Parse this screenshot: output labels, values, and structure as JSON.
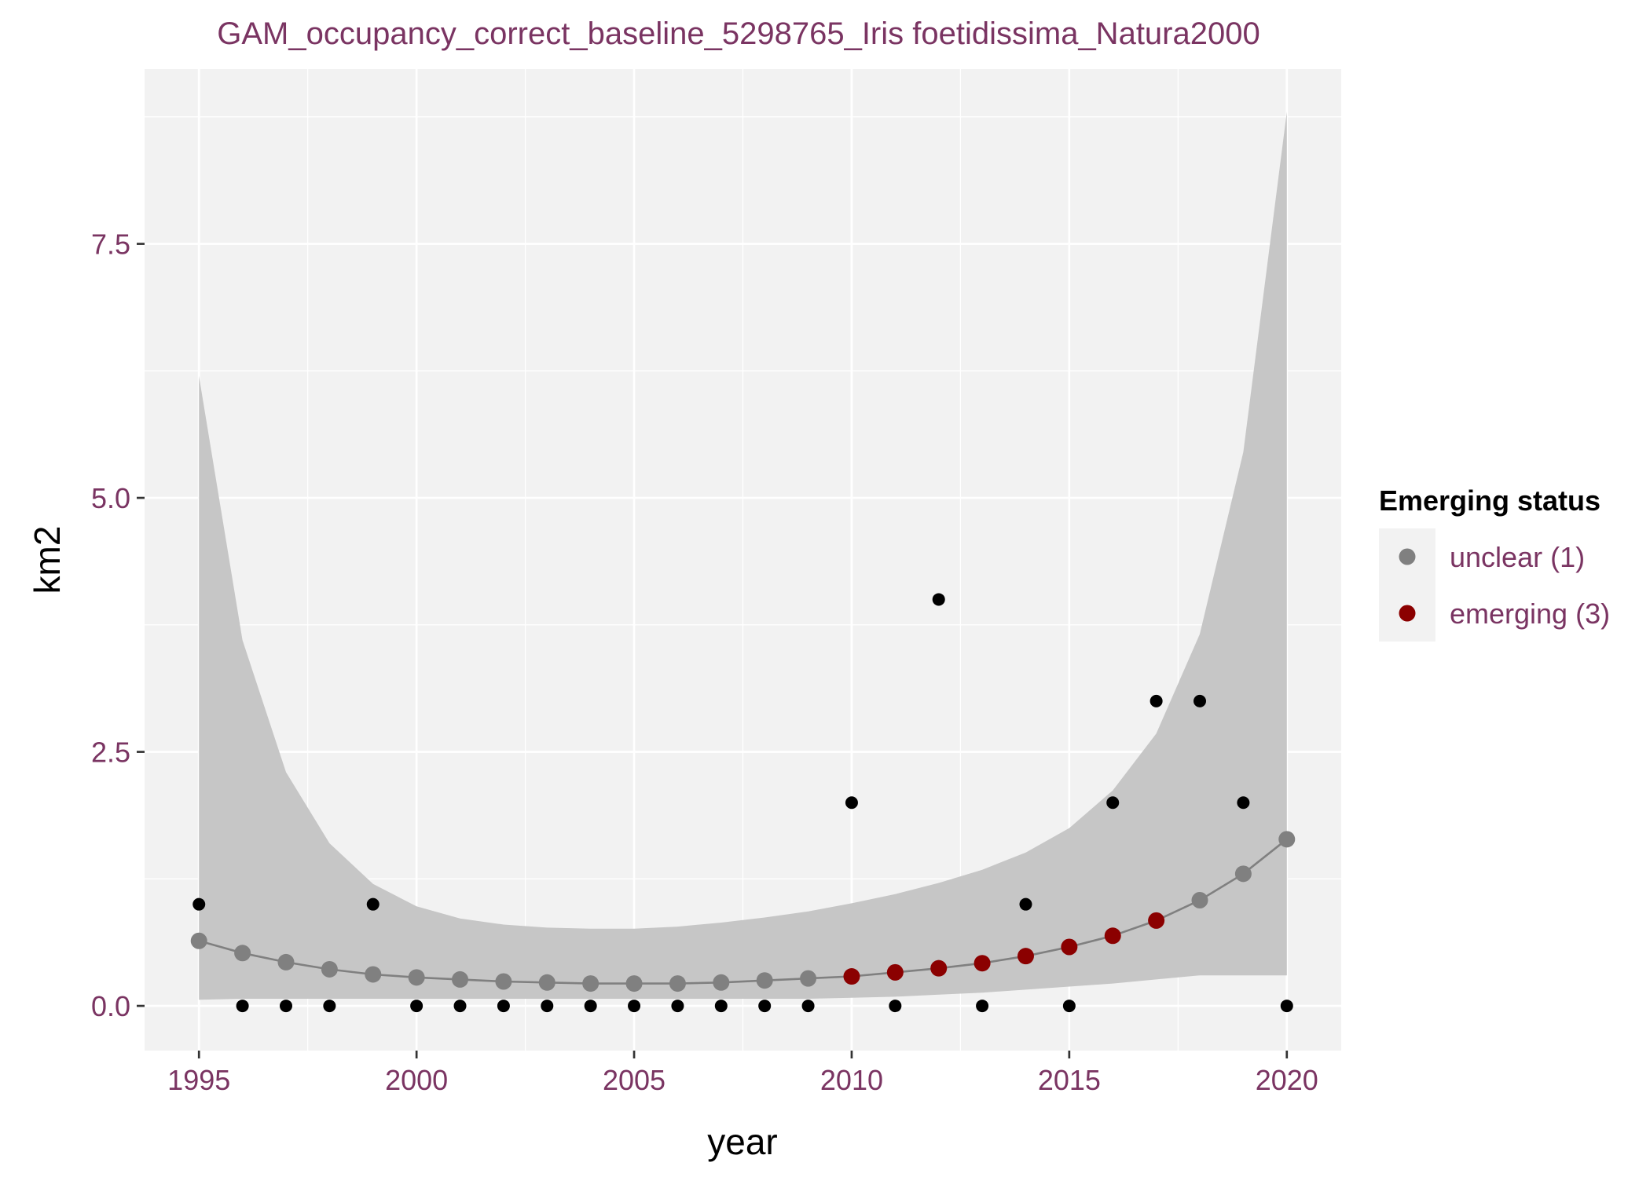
{
  "chart_data": {
    "type": "scatter",
    "title": "GAM_occupancy_correct_baseline_5298765_Iris foetidissima_Natura2000",
    "xlabel": "year",
    "ylabel": "km2",
    "xlim": [
      1993.75,
      2021.25
    ],
    "ylim": [
      -0.44,
      9.22
    ],
    "x_ticks": [
      1995,
      2000,
      2005,
      2010,
      2015,
      2020
    ],
    "x_tick_labels": [
      "1995",
      "2000",
      "2005",
      "2010",
      "2015",
      "2020"
    ],
    "y_ticks": [
      0,
      2.5,
      5,
      7.5
    ],
    "y_tick_labels": [
      "0.0",
      "2.5",
      "5.0",
      "7.5"
    ],
    "grid": true,
    "legend": {
      "title": "Emerging status",
      "position": "right",
      "entries": [
        {
          "label": "unclear (1)",
          "color": "#808080"
        },
        {
          "label": "emerging (3)",
          "color": "#8b0000"
        }
      ]
    },
    "observed": {
      "color": "#000000",
      "x": [
        1995,
        1996,
        1997,
        1998,
        1999,
        2000,
        2001,
        2002,
        2003,
        2004,
        2005,
        2006,
        2007,
        2008,
        2009,
        2010,
        2011,
        2012,
        2013,
        2014,
        2015,
        2016,
        2017,
        2018,
        2019,
        2020
      ],
      "y": [
        1,
        0,
        0,
        0,
        1,
        0,
        0,
        0,
        0,
        0,
        0,
        0,
        0,
        0,
        0,
        2,
        0,
        4,
        0,
        1,
        0,
        2,
        3,
        3,
        2,
        0
      ]
    },
    "fit": {
      "x": [
        1995,
        1996,
        1997,
        1998,
        1999,
        2000,
        2001,
        2002,
        2003,
        2004,
        2005,
        2006,
        2007,
        2008,
        2009,
        2010,
        2011,
        2012,
        2013,
        2014,
        2015,
        2016,
        2017,
        2018,
        2019,
        2020
      ],
      "y": [
        0.64,
        0.52,
        0.43,
        0.36,
        0.31,
        0.28,
        0.26,
        0.24,
        0.23,
        0.22,
        0.22,
        0.22,
        0.23,
        0.25,
        0.27,
        0.29,
        0.33,
        0.37,
        0.42,
        0.49,
        0.58,
        0.69,
        0.84,
        1.04,
        1.3,
        1.64
      ],
      "lower": [
        0.06,
        0.07,
        0.07,
        0.07,
        0.07,
        0.07,
        0.07,
        0.07,
        0.07,
        0.07,
        0.07,
        0.07,
        0.07,
        0.07,
        0.07,
        0.08,
        0.09,
        0.11,
        0.13,
        0.16,
        0.19,
        0.22,
        0.26,
        0.3,
        0.3,
        0.3
      ],
      "upper": [
        6.2,
        3.6,
        2.3,
        1.6,
        1.2,
        0.98,
        0.86,
        0.8,
        0.77,
        0.76,
        0.76,
        0.78,
        0.82,
        0.87,
        0.93,
        1.01,
        1.1,
        1.21,
        1.34,
        1.51,
        1.75,
        2.12,
        2.68,
        3.66,
        5.45,
        8.8
      ],
      "status": [
        "unclear",
        "unclear",
        "unclear",
        "unclear",
        "unclear",
        "unclear",
        "unclear",
        "unclear",
        "unclear",
        "unclear",
        "unclear",
        "unclear",
        "unclear",
        "unclear",
        "unclear",
        "emerging",
        "emerging",
        "emerging",
        "emerging",
        "emerging",
        "emerging",
        "emerging",
        "emerging",
        "unclear",
        "unclear",
        "unclear"
      ],
      "line_color": "#808080",
      "ribbon_color": "#c6c6c6"
    },
    "colors": {
      "panel": "#f2f2f2",
      "grid": "#ffffff",
      "text": "#7a3462",
      "unclear": "#808080",
      "emerging": "#8b0000"
    }
  }
}
